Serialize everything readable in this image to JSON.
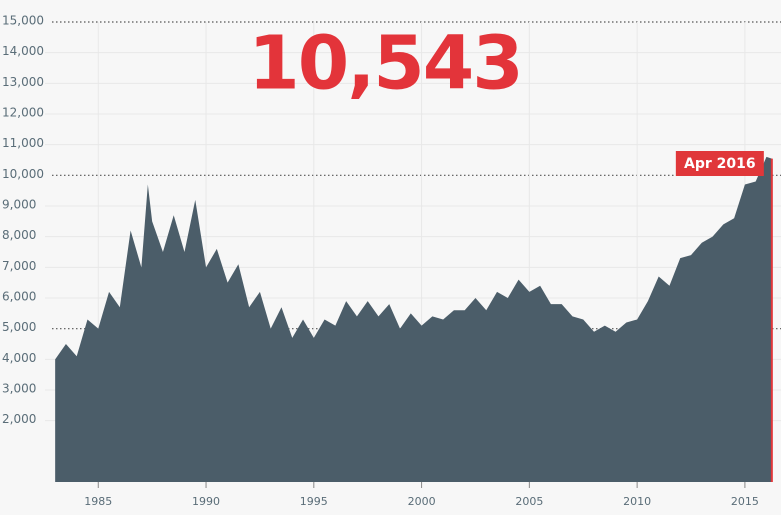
{
  "chart_data": {
    "type": "area",
    "headline": "10,543",
    "annotation": "Apr 2016",
    "color": "#4b5d69",
    "highlight_color": "#e0373a",
    "grid": true,
    "xlim": [
      1982.9,
      2016.35
    ],
    "xticks": [
      1985,
      1990,
      1995,
      2000,
      2005,
      2010,
      2015
    ],
    "ylim": [
      0,
      15000
    ],
    "yticks": [
      {
        "value": 2000,
        "label": "2,000"
      },
      {
        "value": 3000,
        "label": "3,000"
      },
      {
        "value": 4000,
        "label": "4,000"
      },
      {
        "value": 5000,
        "label": "5,000"
      },
      {
        "value": 6000,
        "label": "6,000"
      },
      {
        "value": 7000,
        "label": "7,000"
      },
      {
        "value": 8000,
        "label": "8,000"
      },
      {
        "value": 9000,
        "label": "9,000"
      },
      {
        "value": 10000,
        "label": "10,000"
      },
      {
        "value": 11000,
        "label": "11,000"
      },
      {
        "value": 12000,
        "label": "12,000"
      },
      {
        "value": 13000,
        "label": "13,000"
      },
      {
        "value": 14000,
        "label": "14,000"
      },
      {
        "value": 15000,
        "label": "15,000"
      }
    ],
    "x": [
      1983.0,
      1983.5,
      1984.0,
      1984.5,
      1985.0,
      1985.5,
      1986.0,
      1986.5,
      1987.0,
      1987.3,
      1987.5,
      1988.0,
      1988.5,
      1989.0,
      1989.5,
      1990.0,
      1990.5,
      1991.0,
      1991.5,
      1992.0,
      1992.5,
      1993.0,
      1993.5,
      1994.0,
      1994.5,
      1995.0,
      1995.5,
      1996.0,
      1996.5,
      1997.0,
      1997.5,
      1998.0,
      1998.5,
      1999.0,
      1999.5,
      2000.0,
      2000.5,
      2001.0,
      2001.5,
      2002.0,
      2002.5,
      2003.0,
      2003.5,
      2004.0,
      2004.5,
      2005.0,
      2005.5,
      2006.0,
      2006.5,
      2007.0,
      2007.5,
      2008.0,
      2008.5,
      2009.0,
      2009.5,
      2010.0,
      2010.5,
      2011.0,
      2011.5,
      2012.0,
      2012.5,
      2013.0,
      2013.5,
      2014.0,
      2014.5,
      2015.0,
      2015.5,
      2016.0,
      2016.25
    ],
    "values": [
      4000,
      4500,
      4100,
      5300,
      5000,
      6200,
      5700,
      8200,
      7000,
      9700,
      8500,
      7500,
      8700,
      7500,
      9200,
      7000,
      7600,
      6500,
      7100,
      5700,
      6200,
      5000,
      5700,
      4700,
      5300,
      4700,
      5300,
      5100,
      5900,
      5400,
      5900,
      5400,
      5800,
      5000,
      5500,
      5100,
      5400,
      5300,
      5600,
      5600,
      6000,
      5600,
      6200,
      6000,
      6600,
      6200,
      6400,
      5800,
      5800,
      5400,
      5300,
      4900,
      5100,
      4900,
      5200,
      5300,
      5900,
      6700,
      6400,
      7300,
      7400,
      7800,
      8000,
      8400,
      8600,
      9700,
      9800,
      10600,
      10543
    ]
  }
}
